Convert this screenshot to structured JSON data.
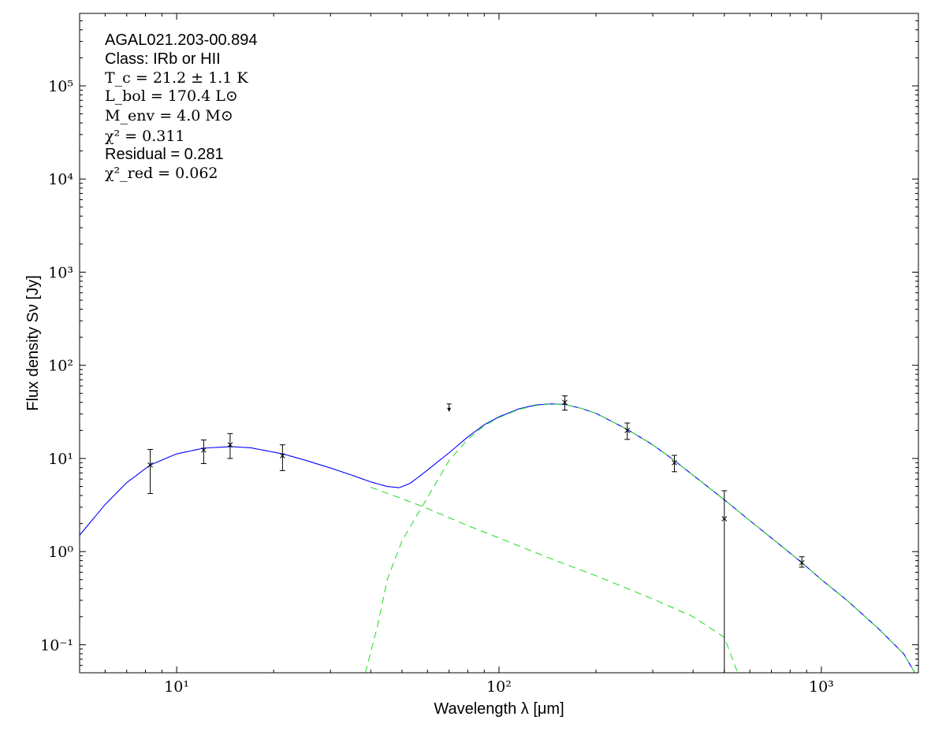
{
  "chart_data": {
    "type": "scatter",
    "xlabel": "Wavelength λ [μm]",
    "ylabel": "Flux density Sν [Jy]",
    "xscale": "log",
    "yscale": "log",
    "xlim": [
      5,
      2000
    ],
    "ylim": [
      0.05,
      600000
    ],
    "x_ticks": [
      {
        "value": 10,
        "label": "10¹"
      },
      {
        "value": 100,
        "label": "10²"
      },
      {
        "value": 1000,
        "label": "10³"
      }
    ],
    "y_ticks": [
      {
        "value": 0.1,
        "label": "10⁻¹"
      },
      {
        "value": 1,
        "label": "10⁰"
      },
      {
        "value": 10,
        "label": "10¹"
      },
      {
        "value": 100,
        "label": "10²"
      },
      {
        "value": 1000,
        "label": "10³"
      },
      {
        "value": 10000,
        "label": "10⁴"
      },
      {
        "value": 100000,
        "label": "10⁵"
      }
    ],
    "annotations": [
      "AGAL021.203-00.894",
      "Class: IRb or HII",
      "T_c = 21.2 ± 1.1 K",
      "L_bol = 170.4 L⊙",
      "M_env = 4.0 M⊙",
      "χ² = 0.311",
      "Residual = 0.281",
      "χ²_red = 0.062"
    ],
    "series": [
      {
        "kind": "measurements",
        "color": "#000000",
        "points": [
          {
            "x": 8.28,
            "y": 8.5,
            "ylo": 4.2,
            "yhi": 12.5
          },
          {
            "x": 12.13,
            "y": 12.3,
            "ylo": 8.8,
            "yhi": 15.8
          },
          {
            "x": 14.65,
            "y": 14.0,
            "ylo": 10.0,
            "yhi": 18.5
          },
          {
            "x": 21.3,
            "y": 10.7,
            "ylo": 7.4,
            "yhi": 14.0
          },
          {
            "x": 160,
            "y": 40.0,
            "ylo": 33.0,
            "yhi": 47.0
          },
          {
            "x": 250,
            "y": 20.0,
            "ylo": 16.0,
            "yhi": 24.0
          },
          {
            "x": 350,
            "y": 9.0,
            "ylo": 7.2,
            "yhi": 10.8
          },
          {
            "x": 500,
            "y": 2.25,
            "ylo": 0.02,
            "yhi": 4.5
          },
          {
            "x": 870,
            "y": 0.76,
            "ylo": 0.68,
            "yhi": 0.88
          }
        ]
      },
      {
        "kind": "upper_limit",
        "color": "#000000",
        "points": [
          {
            "x": 70,
            "y": 37
          }
        ]
      },
      {
        "kind": "total_fit",
        "color": "#0000ff",
        "style": "solid",
        "points": [
          [
            5,
            1.5
          ],
          [
            6,
            3.2
          ],
          [
            7,
            5.5
          ],
          [
            8.28,
            8.5
          ],
          [
            10,
            11.2
          ],
          [
            12.13,
            12.9
          ],
          [
            14.65,
            13.4
          ],
          [
            17,
            13.0
          ],
          [
            21.3,
            11.2
          ],
          [
            25,
            9.6
          ],
          [
            30,
            7.9
          ],
          [
            35,
            6.6
          ],
          [
            40,
            5.6
          ],
          [
            45,
            5.0
          ],
          [
            49,
            4.85
          ],
          [
            53,
            5.4
          ],
          [
            60,
            7.5
          ],
          [
            70,
            11.5
          ],
          [
            80,
            17.0
          ],
          [
            90,
            23.0
          ],
          [
            100,
            28.0
          ],
          [
            115,
            34.0
          ],
          [
            130,
            37.5
          ],
          [
            145,
            38.5
          ],
          [
            160,
            38.0
          ],
          [
            180,
            34.5
          ],
          [
            200,
            30.5
          ],
          [
            250,
            20.5
          ],
          [
            300,
            14.0
          ],
          [
            350,
            9.5
          ],
          [
            400,
            6.6
          ],
          [
            500,
            3.6
          ],
          [
            600,
            2.15
          ],
          [
            700,
            1.4
          ],
          [
            870,
            0.76
          ],
          [
            1000,
            0.5
          ],
          [
            1200,
            0.3
          ],
          [
            1500,
            0.15
          ],
          [
            1800,
            0.08
          ],
          [
            1950,
            0.05
          ]
        ]
      },
      {
        "kind": "warm_component",
        "color": "#33dd33",
        "style": "dashed",
        "points": [
          [
            40,
            4.9
          ],
          [
            50,
            3.7
          ],
          [
            60,
            2.9
          ],
          [
            80,
            1.9
          ],
          [
            100,
            1.4
          ],
          [
            150,
            0.8
          ],
          [
            200,
            0.55
          ],
          [
            300,
            0.31
          ],
          [
            400,
            0.2
          ],
          [
            500,
            0.12
          ],
          [
            550,
            0.05
          ]
        ]
      },
      {
        "kind": "cold_component",
        "color": "#33dd33",
        "style": "dashed",
        "points": [
          [
            38.5,
            0.05
          ],
          [
            42,
            0.16
          ],
          [
            45,
            0.5
          ],
          [
            50,
            1.3
          ],
          [
            55,
            2.3
          ],
          [
            60,
            3.8
          ],
          [
            70,
            9.5
          ],
          [
            80,
            16.0
          ],
          [
            90,
            22.5
          ],
          [
            100,
            27.5
          ],
          [
            115,
            33.5
          ],
          [
            130,
            37.0
          ],
          [
            145,
            38.3
          ],
          [
            160,
            38.0
          ],
          [
            180,
            34.5
          ],
          [
            200,
            30.5
          ],
          [
            250,
            20.5
          ],
          [
            300,
            14.0
          ],
          [
            350,
            9.5
          ],
          [
            400,
            6.6
          ],
          [
            500,
            3.6
          ],
          [
            600,
            2.15
          ],
          [
            700,
            1.4
          ],
          [
            870,
            0.76
          ],
          [
            1000,
            0.5
          ],
          [
            1200,
            0.3
          ],
          [
            1500,
            0.15
          ],
          [
            1800,
            0.08
          ],
          [
            1950,
            0.05
          ]
        ]
      }
    ]
  }
}
